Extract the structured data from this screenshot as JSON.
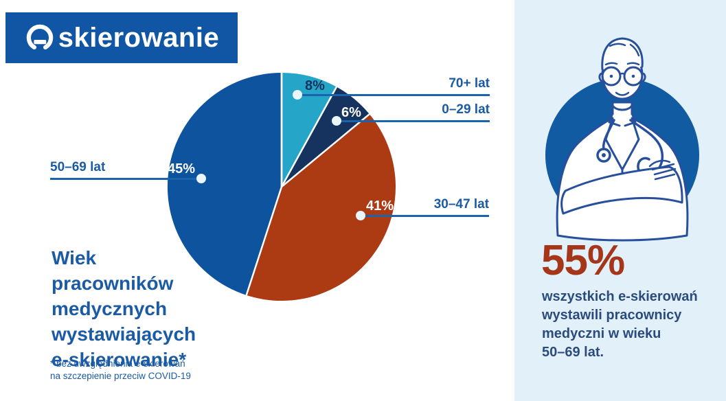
{
  "page": {
    "background": "#ffffff"
  },
  "logo": {
    "icon": "e-circle-icon",
    "text": "skierowanie",
    "bg_color": "#1156a5"
  },
  "chart_data": {
    "type": "pie",
    "title": "Wiek pracowników medycznych wystawiających e-skierowanie*",
    "footnote": "* bez uwzględnienia e-skierowań na szczepienie przeciw COVID-19",
    "start_angle_deg_from_top": 0,
    "direction": "clockwise",
    "legend_position": "callout-labels",
    "slices": [
      {
        "label": "70+ lat",
        "value": 8,
        "pct_label": "8%",
        "color": "#25a5c8"
      },
      {
        "label": "0–29 lat",
        "value": 6,
        "pct_label": "6%",
        "color": "#16325f"
      },
      {
        "label": "30–47 lat",
        "value": 41,
        "pct_label": "41%",
        "color": "#ac3a12"
      },
      {
        "label": "50–69 lat",
        "value": 45,
        "pct_label": "45%",
        "color": "#0e539e"
      }
    ]
  },
  "left": {
    "title": "Wiek\npracowników\nmedycznych\nwystawiających\ne-skierowanie*",
    "footnote": "* bez uwzględnienia e-skierowań\nna szczepienie przeciw COVID-19"
  },
  "right_panel": {
    "illustration": "doctor-with-stethoscope",
    "stat_value": "55%",
    "stat_text": "wszystkich e-skierowań\nwystawili pracownicy\nmedyczni w wieku\n50–69 lat.",
    "bg_color": "#e2f1f9",
    "accent_color": "#a5361a"
  }
}
